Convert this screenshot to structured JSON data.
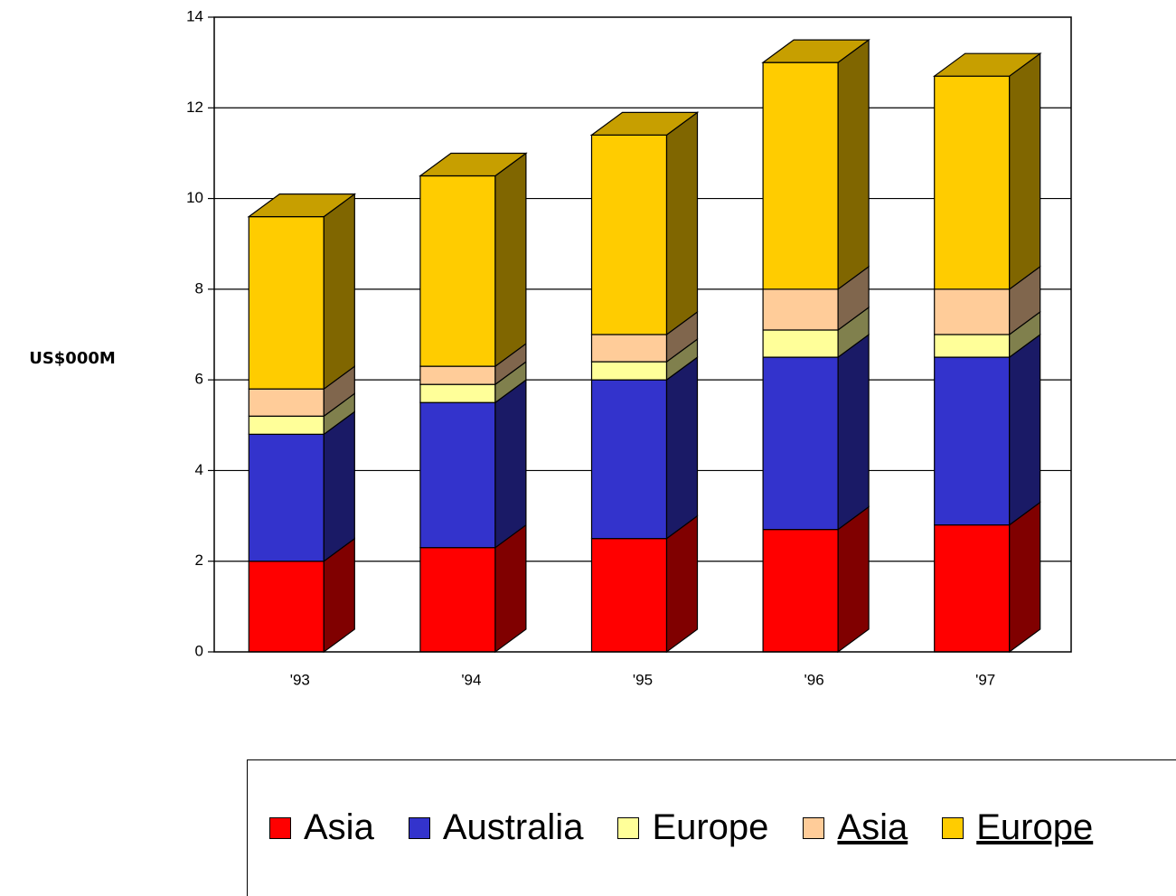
{
  "chart_data": {
    "type": "bar",
    "stacked": true,
    "three_d": true,
    "categories": [
      "'93",
      "'94",
      "'95",
      "'96",
      "'97"
    ],
    "ylabel": "US$000M",
    "ylim": [
      0,
      14
    ],
    "yticks": [
      0,
      2,
      4,
      6,
      8,
      10,
      12,
      14
    ],
    "grid": true,
    "legend_placement": "bottom",
    "series": [
      {
        "name": "Asia",
        "color": "#ff0000",
        "side_color": "#800000",
        "underlined": false,
        "values": [
          2.0,
          2.3,
          2.5,
          2.7,
          2.8
        ]
      },
      {
        "name": "Australia",
        "color": "#3333cc",
        "side_color": "#1a1a66",
        "underlined": false,
        "values": [
          2.8,
          3.2,
          3.5,
          3.8,
          3.7
        ]
      },
      {
        "name": "Europe",
        "color": "#ffff99",
        "side_color": "#80804d",
        "underlined": false,
        "values": [
          0.4,
          0.4,
          0.4,
          0.6,
          0.5
        ]
      },
      {
        "name": "Asia",
        "color": "#ffcc99",
        "side_color": "#80664d",
        "underlined": true,
        "values": [
          0.6,
          0.4,
          0.6,
          0.9,
          1.0
        ]
      },
      {
        "name": "Europe",
        "color": "#ffcc00",
        "side_color": "#806600",
        "underlined": true,
        "values": [
          3.8,
          4.2,
          4.4,
          5.0,
          4.7
        ]
      }
    ]
  }
}
